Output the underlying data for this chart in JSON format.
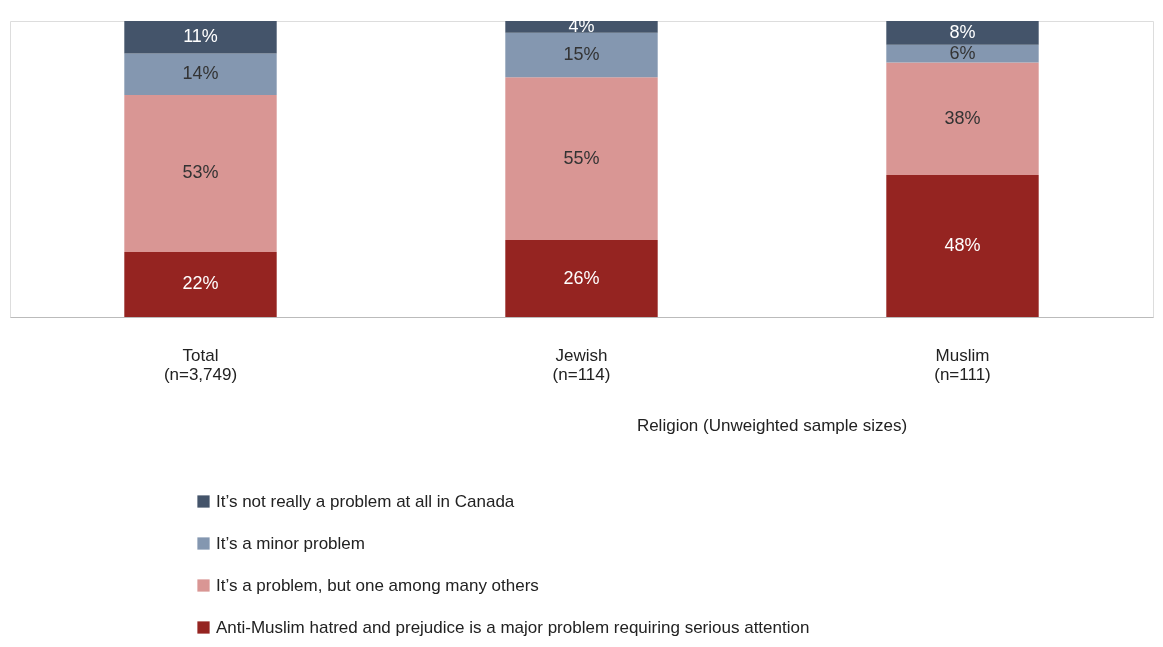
{
  "chart_data": {
    "type": "bar",
    "stacked": true,
    "legend": "bottom",
    "grid": false,
    "categories": [
      "Total\n(n=3,749)",
      "Jewish\n(n=114)",
      "Muslim\n(n=111)"
    ],
    "annotations": [
      "Religion (Unweighted sample sizes)"
    ],
    "series": [
      {
        "name": "Anti-Muslim hatred and prejudice is a major problem requiring serious attention",
        "color": "#952421",
        "values": [
          22,
          26,
          48
        ],
        "value_labels": [
          "22%",
          "26%",
          "48%"
        ]
      },
      {
        "name": "It’s a problem, but one among many others",
        "color": "#d99694",
        "values": [
          53,
          55,
          38
        ],
        "value_labels": [
          "53%",
          "55%",
          "38%"
        ]
      },
      {
        "name": "It’s a minor problem",
        "color": "#8497b0",
        "values": [
          14,
          15,
          6
        ],
        "value_labels": [
          "14%",
          "15%",
          "6%"
        ]
      },
      {
        "name": "It’s not really a problem at all in Canada",
        "color": "#44546a",
        "values": [
          11,
          4,
          8
        ],
        "value_labels": [
          "11%",
          "4%",
          "8%"
        ]
      }
    ]
  }
}
